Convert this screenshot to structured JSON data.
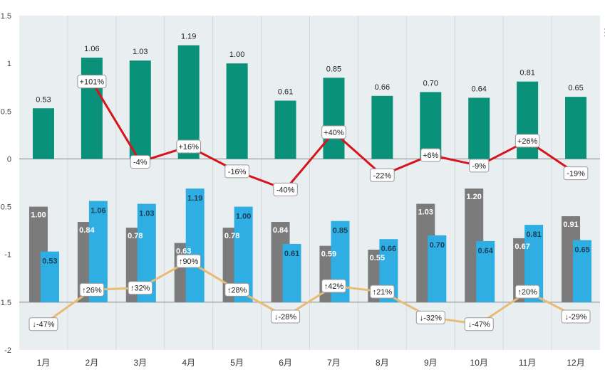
{
  "chart_data": {
    "type": "bar",
    "categories": [
      "1月",
      "2月",
      "3月",
      "4月",
      "5月",
      "6月",
      "7月",
      "8月",
      "9月",
      "10月",
      "11月",
      "12月"
    ],
    "ylim": [
      -2,
      1.5
    ],
    "yticks": [
      "1.5",
      "1",
      "0.5",
      "0",
      "-0.5",
      "-1",
      "-1.5",
      "-2"
    ],
    "ytick_values": [
      1.5,
      1,
      0.5,
      0,
      -0.5,
      -1,
      -1.5,
      -2
    ],
    "top_bars": {
      "name": "current",
      "color": "#0a917a",
      "values": [
        0.53,
        1.06,
        1.03,
        1.19,
        1.0,
        0.61,
        0.85,
        0.66,
        0.7,
        0.64,
        0.81,
        0.65
      ],
      "labels": [
        "0.53",
        "1.06",
        "1.03",
        "1.19",
        "1.00",
        "0.61",
        "0.85",
        "0.66",
        "0.70",
        "0.64",
        "0.81",
        "0.65"
      ]
    },
    "top_line": {
      "color": "#d7141b",
      "y_values": [
        null,
        0.81,
        -0.03,
        0.13,
        -0.13,
        -0.32,
        0.28,
        -0.17,
        0.04,
        -0.07,
        0.19,
        -0.15
      ],
      "labels": [
        "",
        "+101%",
        "-4%",
        "+16%",
        "-16%",
        "-40%",
        "+40%",
        "-22%",
        "+6%",
        "-9%",
        "+26%",
        "-19%"
      ]
    },
    "bottom_gray_bars": {
      "color": "#7b7b7b",
      "tops": [
        -0.5,
        -0.66,
        -0.72,
        -0.88,
        -0.72,
        -0.66,
        -0.91,
        -0.95,
        -0.47,
        -0.31,
        -0.83,
        -0.6
      ],
      "labels": [
        "1.00",
        "0.84",
        "0.78",
        "0.63",
        "0.78",
        "0.84",
        "0.59",
        "0.55",
        "1.03",
        "1.20",
        "0.67",
        "0.91"
      ]
    },
    "bottom_blue_bars": {
      "color": "#2eaee3",
      "tops": [
        -0.97,
        -0.44,
        -0.47,
        -0.31,
        -0.5,
        -0.89,
        -0.65,
        -0.84,
        -0.8,
        -0.86,
        -0.69,
        -0.85
      ],
      "labels": [
        "0.53",
        "1.06",
        "1.03",
        "1.19",
        "1.00",
        "0.61",
        "0.85",
        "0.66",
        "0.70",
        "0.64",
        "0.81",
        "0.65"
      ]
    },
    "bottom_line": {
      "color": "#e8bb76",
      "y_values": [
        -1.73,
        -1.37,
        -1.35,
        -1.07,
        -1.37,
        -1.65,
        -1.33,
        -1.39,
        -1.66,
        -1.73,
        -1.39,
        -1.65
      ],
      "labels": [
        "↓-47%",
        "↑26%",
        "↑32%",
        "↑90%",
        "↑28%",
        "↓-28%",
        "↑42%",
        "↑21%",
        "↓-32%",
        "↓-47%",
        "↑20%",
        "↓-29%"
      ]
    }
  },
  "decor": {
    "more_dots": "⋮"
  }
}
